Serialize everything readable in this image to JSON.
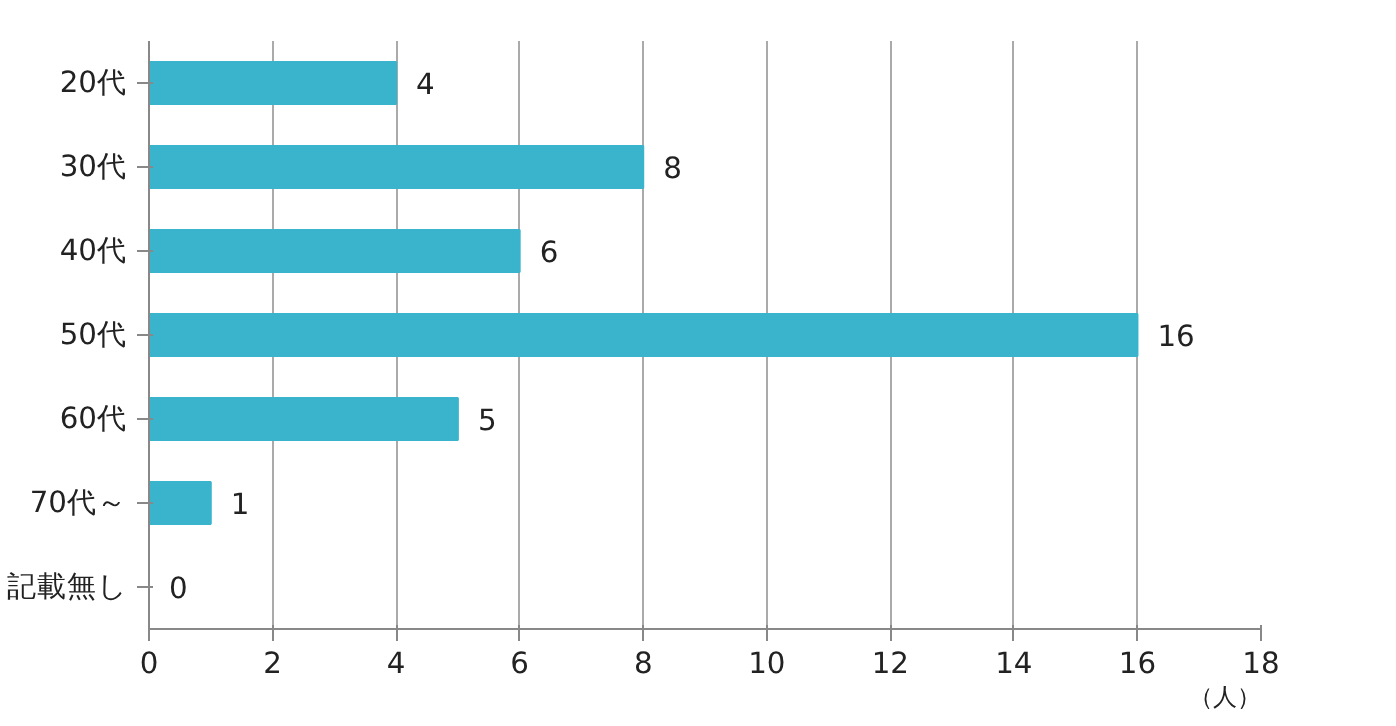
{
  "chart_data": {
    "type": "bar",
    "orientation": "horizontal",
    "xlabel": "（人）",
    "categories": [
      "20代",
      "30代",
      "40代",
      "50代",
      "60代",
      "70代～",
      "記載無し"
    ],
    "values": [
      4,
      8,
      6,
      16,
      5,
      1,
      0
    ],
    "color": "#3ab4cc",
    "xlim": [
      0,
      18
    ],
    "xticks": [
      0,
      2,
      4,
      6,
      8,
      10,
      12,
      14,
      16,
      18
    ],
    "grid": "x",
    "data_labels": true
  }
}
